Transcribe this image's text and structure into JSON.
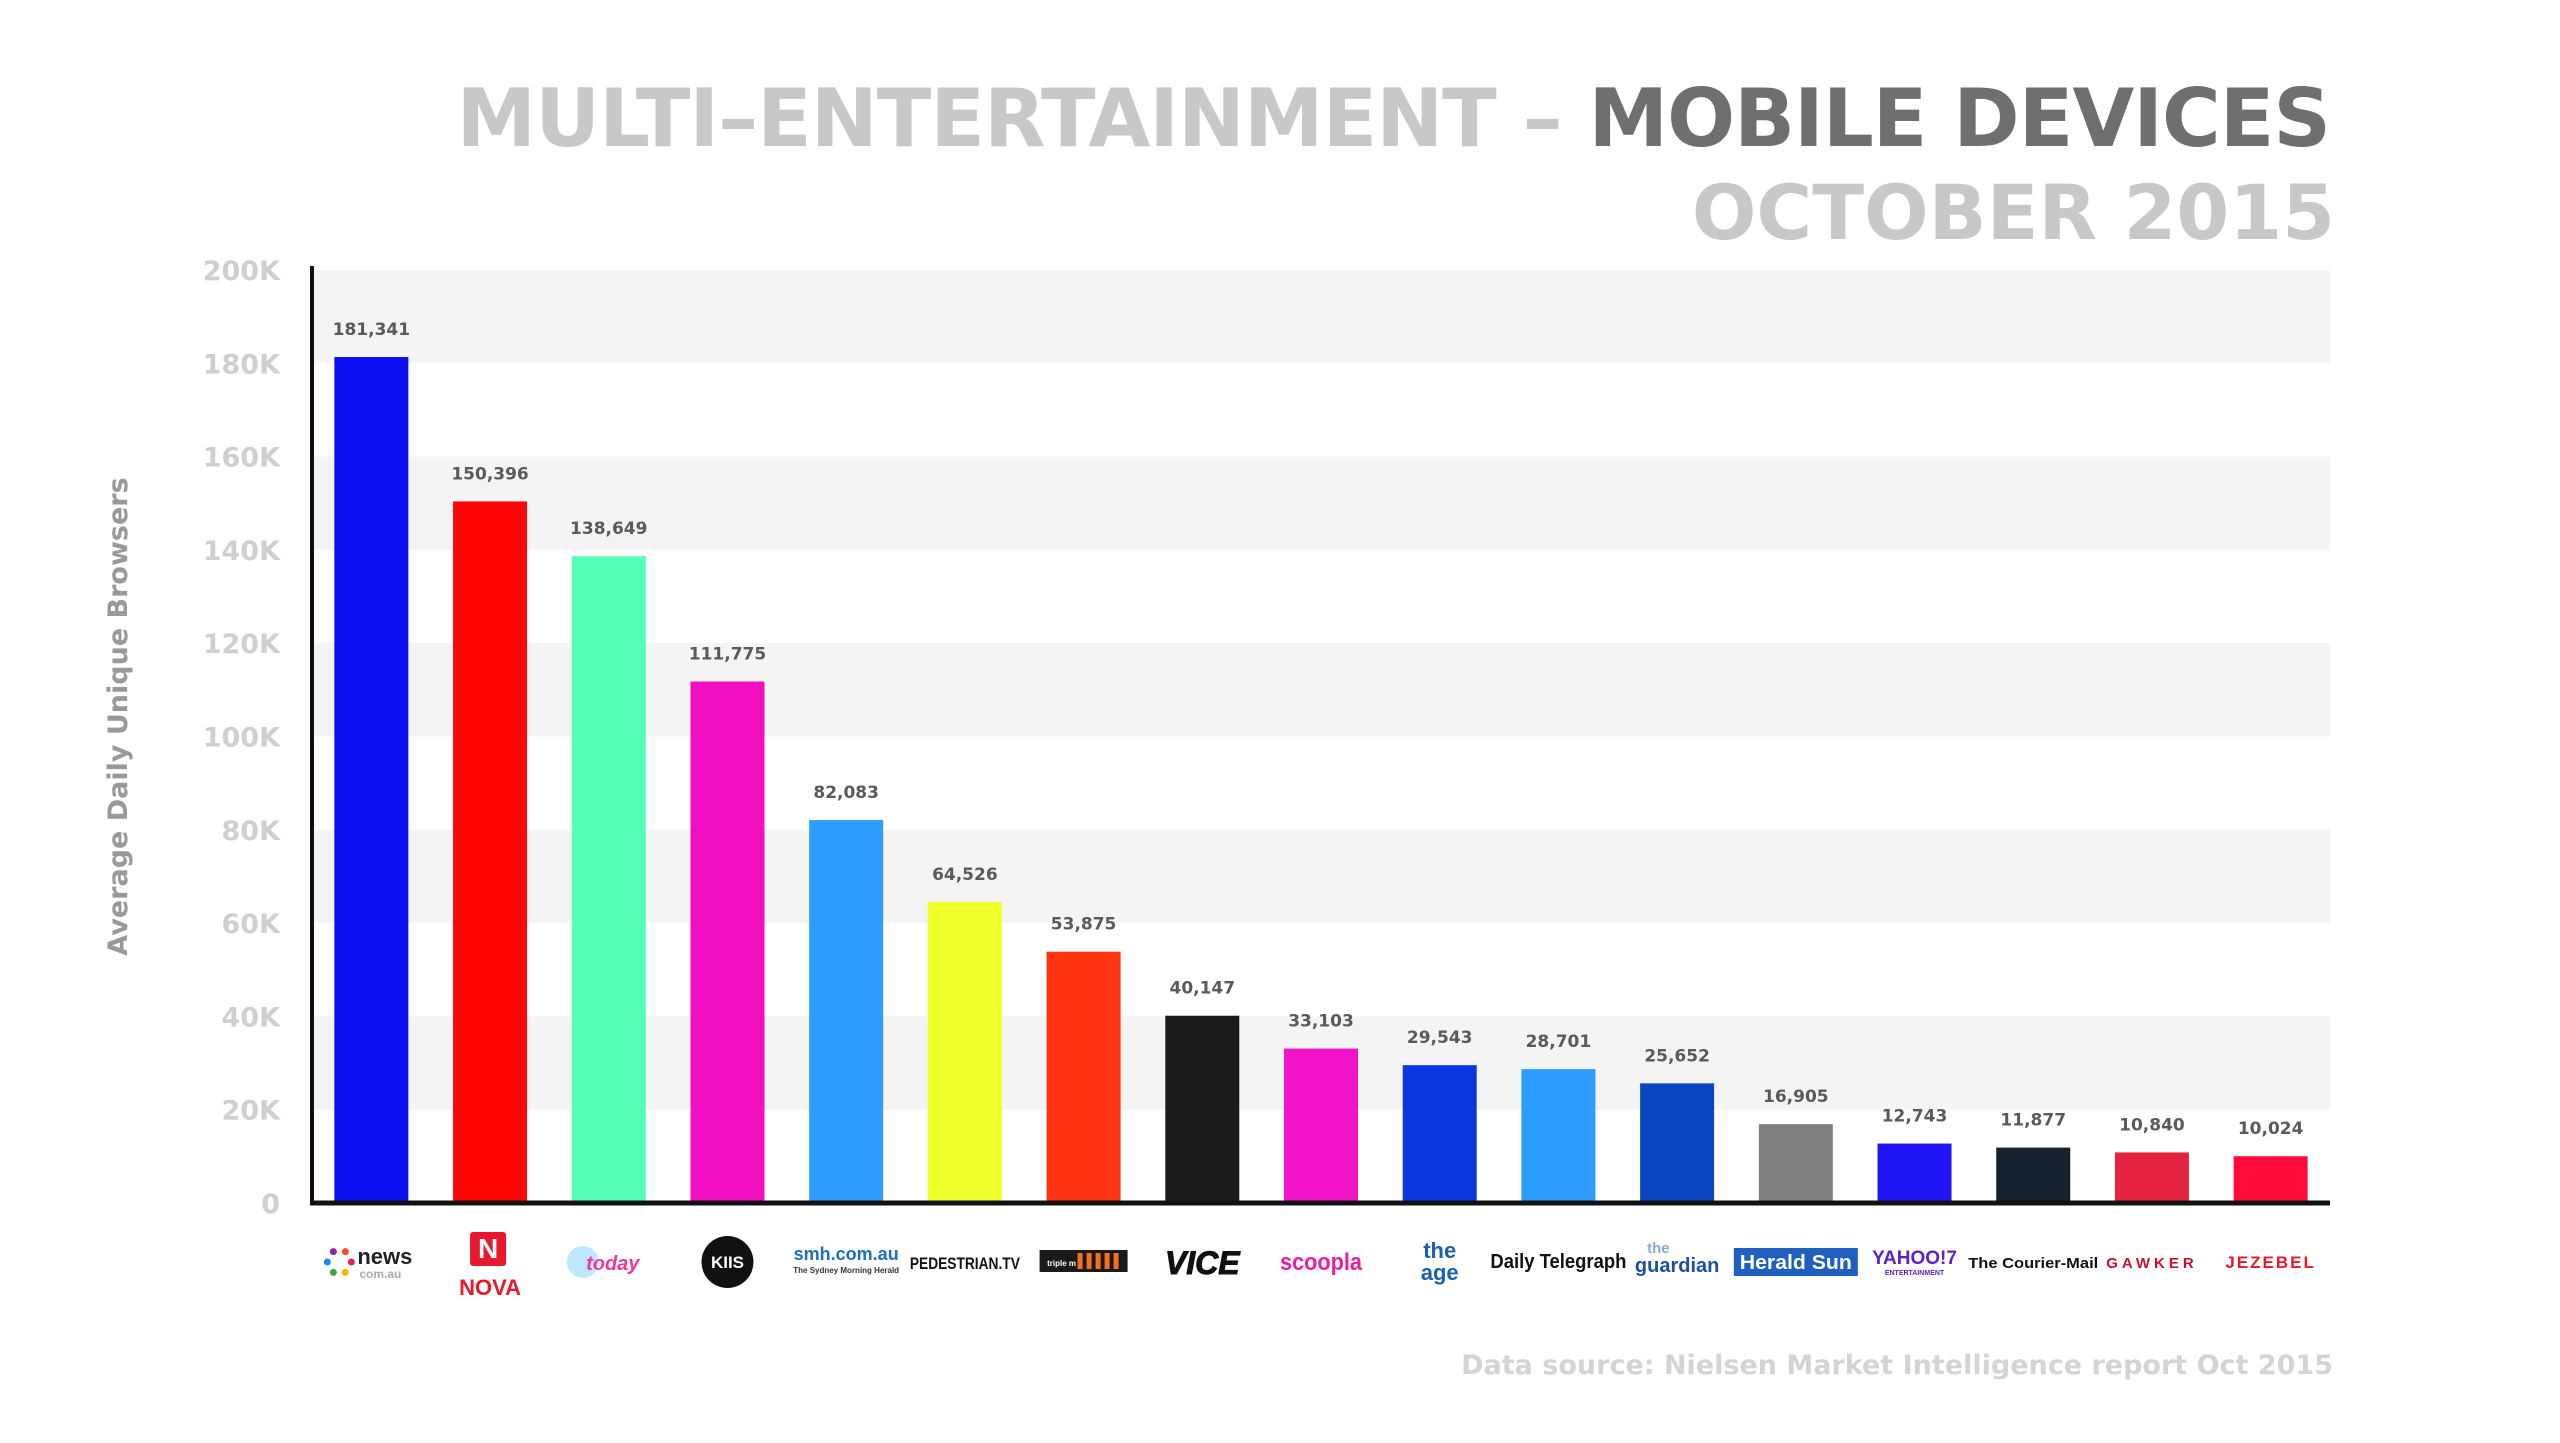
{
  "title": {
    "part1": "MULTI–ENTERTAINMENT – ",
    "part2": "MOBILE DEVICES",
    "line2": "OCTOBER 2015"
  },
  "source": "Data source: Nielsen Market Intelligence report Oct 2015",
  "chart_data": {
    "type": "bar",
    "ylabel": "Average Daily Unique Browsers",
    "ylim": [
      0,
      200000
    ],
    "yticks": [
      {
        "value": 0,
        "label": "0"
      },
      {
        "value": 20000,
        "label": "20K"
      },
      {
        "value": 40000,
        "label": "40K"
      },
      {
        "value": 60000,
        "label": "60K"
      },
      {
        "value": 80000,
        "label": "80K"
      },
      {
        "value": 100000,
        "label": "100K"
      },
      {
        "value": 120000,
        "label": "120K"
      },
      {
        "value": 140000,
        "label": "140K"
      },
      {
        "value": 160000,
        "label": "160K"
      },
      {
        "value": 180000,
        "label": "180K"
      },
      {
        "value": 200000,
        "label": "200K"
      }
    ],
    "grid": "alternating horizontal bands",
    "legend": "none",
    "categories": [
      "news.com.au",
      "NOVA",
      "today",
      "KIIS",
      "smh.com.au",
      "PEDESTRIAN.TV",
      "triple m",
      "VICE",
      "scoopla",
      "the age",
      "Daily Telegraph",
      "the guardian",
      "Herald Sun",
      "YAHOO!7",
      "The Courier-Mail",
      "GAWKER",
      "JEZEBEL"
    ],
    "values": [
      181341,
      150396,
      138649,
      111775,
      82083,
      64526,
      53875,
      40147,
      33103,
      29543,
      28701,
      25652,
      16905,
      12743,
      11877,
      10840,
      10024
    ],
    "value_labels": [
      "181,341",
      "150,396",
      "138,649",
      "111,775",
      "82,083",
      "64,526",
      "53,875",
      "40,147",
      "33,103",
      "29,543",
      "28,701",
      "25,652",
      "16,905",
      "12,743",
      "11,877",
      "10,840",
      "10,024"
    ],
    "colors": [
      "#0a0ff0",
      "#ff0505",
      "#55ffb8",
      "#f20fc2",
      "#2e9bff",
      "#eeff2a",
      "#ff3311",
      "#1b1b1b",
      "#f213c8",
      "#0a36e0",
      "#2e9bff",
      "#0b47c2",
      "#808080",
      "#2016f5",
      "#16212e",
      "#e5243f",
      "#ff0a3a"
    ]
  },
  "logos": [
    {
      "icon": "news-com-au-logo",
      "text": "news",
      "sub": "com.au",
      "color": "#222222"
    },
    {
      "icon": "nova-logo",
      "text": "NOVA",
      "mark": "N",
      "color": "#e8192c"
    },
    {
      "icon": "today-logo",
      "text": "today",
      "color": "#f0379a"
    },
    {
      "icon": "kiis-logo",
      "text": "KIIS",
      "color": "#111111"
    },
    {
      "icon": "smh-logo",
      "text": "smh.com.au",
      "sub": "The Sydney Morning Herald",
      "color": "#1a6fc4"
    },
    {
      "icon": "pedestrian-tv-logo",
      "text": "PEDESTRIAN.TV",
      "color": "#111111"
    },
    {
      "icon": "triple-m-logo",
      "text": "triple m",
      "color": "#222222"
    },
    {
      "icon": "vice-logo",
      "text": "VICE",
      "color": "#111111"
    },
    {
      "icon": "scoopla-logo",
      "text": "scoopla",
      "color": "#e91ea5"
    },
    {
      "icon": "the-age-logo",
      "text": "the age",
      "color": "#1a5fb4"
    },
    {
      "icon": "daily-telegraph-logo",
      "text": "Daily Telegraph",
      "color": "#111111"
    },
    {
      "icon": "the-guardian-logo",
      "text": "guardian",
      "sub": "the",
      "color": "#1d4fa3"
    },
    {
      "icon": "herald-sun-logo",
      "text": "Herald Sun",
      "color": "#ffffff",
      "bg": "#1f5fc0"
    },
    {
      "icon": "yahoo7-logo",
      "text": "YAHOO!7",
      "sub": "ENTERTAINMENT",
      "color": "#5a22c7"
    },
    {
      "icon": "courier-mail-logo",
      "text": "The Courier-Mail",
      "color": "#111111"
    },
    {
      "icon": "gawker-logo",
      "text": "GAWKER",
      "color": "#c4122f"
    },
    {
      "icon": "jezebel-logo",
      "text": "JEZEBEL",
      "color": "#e8192c"
    }
  ]
}
